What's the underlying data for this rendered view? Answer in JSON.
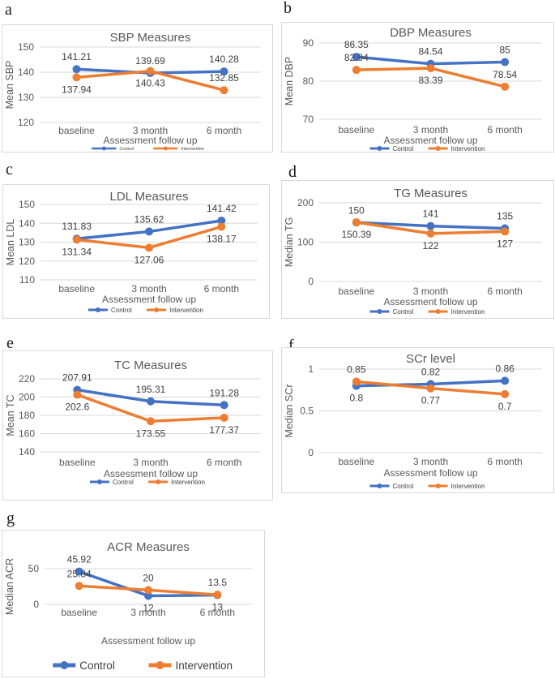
{
  "colors": {
    "control": "#4472C4",
    "intervention": "#ED7D31",
    "grid": "#D9D9D9",
    "axis_text": "#595959",
    "data_label_text": "#404040",
    "panel_border": "#D9D9D9",
    "background": "#FFFFFF"
  },
  "chart_data": [
    {
      "panel_letter": "a",
      "type": "line",
      "title": "SBP Measures",
      "ylabel": "Mean SBP",
      "xlabel": "Assessment follow up",
      "categories": [
        "baseline",
        "3 month",
        "6 month"
      ],
      "ylim": [
        120,
        150
      ],
      "yticks": [
        120,
        130,
        140,
        150
      ],
      "grid": true,
      "legend_position": "bottom",
      "legend_size": "tiny",
      "series": [
        {
          "name": "Control",
          "color": "#4472C4",
          "values": [
            141.21,
            139.69,
            140.28
          ],
          "label_pos": [
            "above",
            "above",
            "above"
          ]
        },
        {
          "name": "Intervention",
          "color": "#ED7D31",
          "values": [
            137.94,
            140.43,
            132.85
          ],
          "label_pos": [
            "below",
            "below",
            "above"
          ]
        }
      ]
    },
    {
      "panel_letter": "b",
      "type": "line",
      "title": "DBP Measures",
      "ylabel": "Mean DBP",
      "xlabel": "Assessment follow up",
      "categories": [
        "baseline",
        "3 month",
        "6 month"
      ],
      "ylim": [
        70,
        90
      ],
      "yticks": [
        70,
        80,
        90
      ],
      "grid": true,
      "legend_position": "bottom",
      "legend_size": "small",
      "series": [
        {
          "name": "Control",
          "color": "#4472C4",
          "values": [
            86.35,
            84.54,
            85
          ],
          "label_pos": [
            "above",
            "above",
            "above"
          ]
        },
        {
          "name": "Intervention",
          "color": "#ED7D31",
          "values": [
            82.94,
            83.39,
            78.54
          ],
          "label_pos": [
            "above",
            "below",
            "above"
          ]
        }
      ]
    },
    {
      "panel_letter": "c",
      "type": "line",
      "title": "LDL Measures",
      "ylabel": "Mean LDL",
      "xlabel": "Assessment follow up",
      "categories": [
        "baseline",
        "3 month",
        "6 month"
      ],
      "ylim": [
        110,
        150
      ],
      "yticks": [
        110,
        120,
        130,
        140,
        150
      ],
      "grid": true,
      "legend_position": "bottom",
      "legend_size": "small",
      "series": [
        {
          "name": "Control",
          "color": "#4472C4",
          "values": [
            131.83,
            135.62,
            141.42
          ],
          "label_pos": [
            "above",
            "above",
            "above"
          ]
        },
        {
          "name": "Intervention",
          "color": "#ED7D31",
          "values": [
            131.34,
            127.06,
            138.17
          ],
          "label_pos": [
            "below",
            "below",
            "below"
          ]
        }
      ]
    },
    {
      "panel_letter": "d",
      "type": "line",
      "title": "TG Measures",
      "ylabel": "Median TG",
      "xlabel": "Assessment follow up",
      "categories": [
        "baseline",
        "3 month",
        "6 month"
      ],
      "ylim": [
        0,
        200
      ],
      "yticks": [
        0,
        100,
        200
      ],
      "grid": true,
      "legend_position": "bottom",
      "legend_size": "small",
      "series": [
        {
          "name": "Control",
          "color": "#4472C4",
          "values": [
            150,
            141,
            135
          ],
          "label_pos": [
            "above",
            "above",
            "above"
          ]
        },
        {
          "name": "Intervention",
          "color": "#ED7D31",
          "values": [
            150.39,
            122,
            127
          ],
          "label_pos": [
            "below",
            "below",
            "below"
          ]
        }
      ]
    },
    {
      "panel_letter": "e",
      "type": "line",
      "title": "TC Measures",
      "ylabel": "Mean TC",
      "xlabel": "Assessment follow up",
      "categories": [
        "baseline",
        "3 month",
        "6 month"
      ],
      "ylim": [
        140,
        220
      ],
      "yticks": [
        140,
        160,
        180,
        200,
        220
      ],
      "grid": true,
      "legend_position": "bottom",
      "legend_size": "small",
      "series": [
        {
          "name": "Control",
          "color": "#4472C4",
          "values": [
            207.91,
            195.31,
            191.28
          ],
          "label_pos": [
            "above",
            "above",
            "above"
          ]
        },
        {
          "name": "Intervention",
          "color": "#ED7D31",
          "values": [
            202.6,
            173.55,
            177.37
          ],
          "label_pos": [
            "below",
            "below",
            "below"
          ]
        }
      ]
    },
    {
      "panel_letter": "f",
      "type": "line",
      "title": "SCr level",
      "ylabel": "Median SCr",
      "xlabel": "Assessment follow up",
      "categories": [
        "baseline",
        "3 month",
        "6 month"
      ],
      "ylim": [
        0,
        1
      ],
      "yticks": [
        0,
        0.5,
        1
      ],
      "grid": true,
      "legend_position": "bottom",
      "legend_size": "small",
      "series": [
        {
          "name": "Control",
          "color": "#4472C4",
          "values": [
            0.8,
            0.82,
            0.86
          ],
          "label_pos": [
            "below",
            "above",
            "above"
          ]
        },
        {
          "name": "Intervention",
          "color": "#ED7D31",
          "values": [
            0.85,
            0.77,
            0.7
          ],
          "label_pos": [
            "above",
            "below",
            "below"
          ]
        }
      ]
    },
    {
      "panel_letter": "g",
      "type": "line",
      "title": "ACR Measures",
      "ylabel": "Median ACR",
      "xlabel": "Assessment follow up",
      "categories": [
        "baseline",
        "3 month",
        "6 month"
      ],
      "ylim": [
        0,
        50
      ],
      "yticks": [
        0,
        50
      ],
      "grid": true,
      "legend_position": "bottom",
      "legend_size": "large",
      "series": [
        {
          "name": "Control",
          "color": "#4472C4",
          "values": [
            45.92,
            12,
            13
          ],
          "label_pos": [
            "above",
            "below",
            "below"
          ]
        },
        {
          "name": "Intervention",
          "color": "#ED7D31",
          "values": [
            25.84,
            20,
            13.5
          ],
          "label_pos": [
            "above",
            "above",
            "above"
          ]
        }
      ]
    }
  ]
}
